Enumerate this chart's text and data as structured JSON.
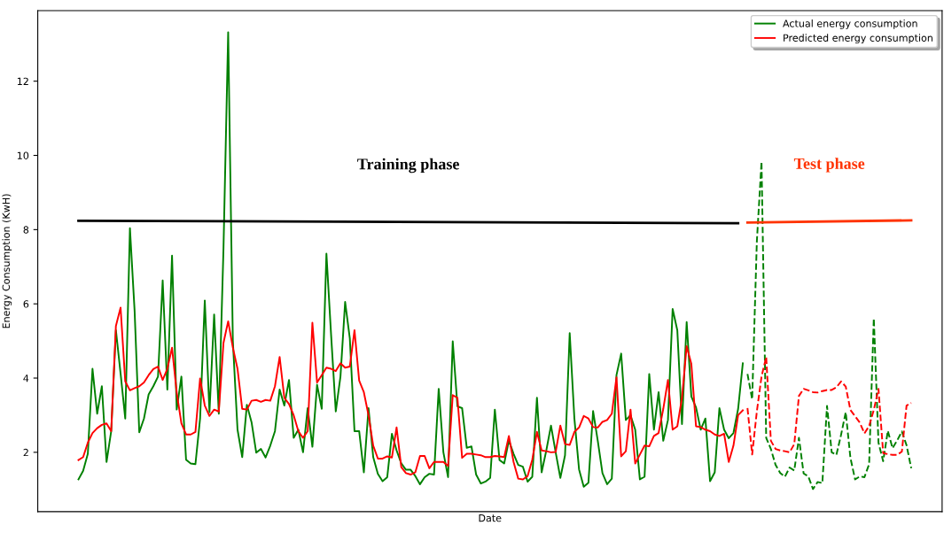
{
  "chart_data": {
    "type": "line",
    "xlabel": "Date",
    "ylabel": "Energy Consumption (KwH)",
    "categories": [
      null,
      null,
      null,
      null,
      null,
      null,
      null,
      null,
      null,
      null,
      null,
      null,
      null,
      null,
      null,
      null,
      null,
      null,
      null,
      null,
      null,
      null,
      null,
      null,
      null,
      null,
      null,
      null,
      null,
      null,
      null,
      null,
      null,
      null,
      null,
      null,
      null,
      null,
      null,
      null,
      null,
      null,
      null,
      null,
      null,
      null,
      null,
      null,
      null,
      null,
      null,
      null,
      null,
      null,
      null,
      null,
      null,
      null,
      null,
      null,
      null,
      null,
      null,
      null,
      null,
      null,
      null,
      null,
      null,
      null,
      null,
      null,
      null,
      null,
      null,
      null,
      null,
      null,
      null,
      null,
      null,
      null,
      null,
      null,
      null,
      null,
      null,
      null,
      null,
      null,
      null,
      null,
      null,
      null,
      null,
      null,
      null,
      null,
      null,
      null,
      null,
      null,
      null,
      null,
      null,
      null,
      null,
      null,
      null,
      null,
      null,
      null,
      null,
      null,
      null,
      null,
      null,
      null,
      null,
      null,
      null,
      null,
      null,
      null,
      null,
      null,
      null,
      null,
      null,
      null,
      null,
      null,
      null,
      null,
      null,
      null,
      null,
      null,
      null,
      null,
      null,
      null,
      null,
      null,
      null,
      null,
      null,
      null,
      null,
      null,
      null,
      null,
      null,
      null,
      null,
      null,
      null,
      null,
      null,
      null,
      null,
      null,
      null,
      null,
      null,
      null,
      null,
      null,
      null,
      null,
      null,
      null,
      null,
      null,
      null,
      null,
      null,
      null,
      null
    ],
    "ylim": [
      0.4,
      13.9
    ],
    "yticks": [
      2,
      4,
      6,
      8,
      10,
      12
    ],
    "tick_labels": "y",
    "legend": "upper right",
    "series": [
      {
        "name": "Actual energy consumption",
        "color": "#008000",
        "line_style": "solid",
        "values": [
          1.27,
          1.5,
          1.96,
          4.25,
          3.04,
          3.78,
          1.74,
          2.57,
          5.29,
          4.13,
          2.91,
          8.04,
          5.81,
          2.54,
          2.91,
          3.56,
          3.78,
          4.04,
          6.63,
          3.69,
          7.3,
          3.15,
          4.04,
          1.8,
          1.7,
          1.68,
          2.91,
          6.09,
          3.08,
          5.71,
          3.04,
          7.5,
          13.32,
          5.0,
          2.61,
          1.87,
          3.28,
          2.81,
          1.99,
          2.09,
          1.86,
          2.18,
          2.57,
          3.69,
          3.26,
          3.95,
          2.39,
          2.61,
          2.0,
          3.19,
          2.15,
          3.82,
          3.17,
          7.35,
          5.16,
          3.1,
          4.04,
          6.05,
          5.07,
          2.57,
          2.57,
          1.46,
          3.19,
          1.87,
          1.42,
          1.22,
          1.33,
          2.5,
          2.05,
          1.7,
          1.53,
          1.53,
          1.36,
          1.14,
          1.33,
          1.42,
          1.4,
          3.71,
          2.0,
          1.33,
          4.99,
          3.24,
          3.19,
          2.12,
          2.16,
          1.4,
          1.16,
          1.21,
          1.31,
          3.15,
          1.79,
          1.7,
          2.32,
          1.96,
          1.66,
          1.61,
          1.21,
          1.34,
          3.47,
          1.46,
          2.05,
          2.72,
          2.0,
          1.31,
          1.92,
          5.21,
          2.91,
          1.54,
          1.07,
          1.18,
          3.11,
          2.31,
          1.44,
          1.14,
          1.29,
          4.08,
          4.66,
          2.87,
          3.0,
          2.61,
          1.27,
          1.34,
          4.11,
          2.61,
          3.62,
          2.31,
          2.87,
          5.86,
          5.29,
          2.76,
          5.51,
          3.5,
          3.21,
          2.61,
          2.91,
          1.22,
          1.46,
          3.19,
          2.61,
          2.38,
          2.52,
          3.17,
          4.4,
          null,
          null,
          null,
          null,
          null,
          null,
          null,
          null,
          null,
          null,
          null,
          null,
          null,
          null,
          null,
          null,
          null,
          null,
          null,
          null,
          null,
          null,
          null,
          null,
          null,
          null,
          null,
          null,
          null,
          null,
          null,
          null,
          null,
          null,
          null,
          null
        ]
      },
      {
        "name": "Predicted energy consumption",
        "color": "#ff0000",
        "line_style": "solid",
        "values": [
          1.79,
          1.87,
          2.26,
          2.52,
          2.65,
          2.74,
          2.78,
          2.57,
          5.4,
          5.9,
          3.91,
          3.67,
          3.73,
          3.78,
          3.88,
          4.08,
          4.24,
          4.31,
          3.95,
          4.25,
          4.82,
          3.61,
          2.78,
          2.48,
          2.48,
          2.55,
          3.99,
          3.26,
          2.98,
          3.15,
          3.1,
          4.95,
          5.53,
          4.82,
          4.25,
          3.17,
          3.15,
          3.39,
          3.41,
          3.36,
          3.41,
          3.39,
          3.78,
          4.57,
          3.47,
          3.3,
          3.0,
          2.57,
          2.39,
          2.57,
          5.49,
          3.88,
          4.08,
          4.28,
          4.25,
          4.19,
          4.4,
          4.28,
          4.31,
          5.29,
          3.93,
          3.62,
          3.0,
          2.18,
          1.83,
          1.83,
          1.89,
          1.86,
          2.67,
          1.6,
          1.44,
          1.4,
          1.46,
          1.9,
          1.9,
          1.57,
          1.74,
          1.74,
          1.74,
          1.63,
          3.54,
          3.47,
          1.85,
          1.96,
          1.96,
          1.94,
          1.92,
          1.87,
          1.87,
          1.9,
          1.89,
          1.87,
          2.44,
          1.74,
          1.29,
          1.27,
          1.36,
          1.8,
          2.55,
          2.05,
          2.03,
          2.0,
          2.01,
          2.72,
          2.22,
          2.2,
          2.55,
          2.67,
          2.98,
          2.91,
          2.68,
          2.67,
          2.82,
          2.87,
          3.04,
          4.02,
          1.89,
          2.03,
          3.15,
          1.7,
          1.94,
          2.18,
          2.16,
          2.44,
          2.52,
          3.17,
          3.95,
          2.61,
          2.7,
          3.47,
          4.86,
          4.38,
          2.7,
          2.68,
          2.61,
          2.57,
          2.48,
          2.44,
          2.5,
          1.74,
          2.18,
          3.0,
          3.13,
          null,
          null,
          null,
          null,
          null,
          null,
          null,
          null,
          null,
          null,
          null,
          null,
          null,
          null,
          null,
          null,
          null,
          null,
          null,
          null,
          null,
          null,
          null,
          null,
          null,
          null,
          null,
          null,
          null,
          null,
          null,
          null,
          null,
          null,
          null,
          null
        ]
      },
      {
        "color": "#008000",
        "line_style": "dashed",
        "values": [
          null,
          null,
          null,
          null,
          null,
          null,
          null,
          null,
          null,
          null,
          null,
          null,
          null,
          null,
          null,
          null,
          null,
          null,
          null,
          null,
          null,
          null,
          null,
          null,
          null,
          null,
          null,
          null,
          null,
          null,
          null,
          null,
          null,
          null,
          null,
          null,
          null,
          null,
          null,
          null,
          null,
          null,
          null,
          null,
          null,
          null,
          null,
          null,
          null,
          null,
          null,
          null,
          null,
          null,
          null,
          null,
          null,
          null,
          null,
          null,
          null,
          null,
          null,
          null,
          null,
          null,
          null,
          null,
          null,
          null,
          null,
          null,
          null,
          null,
          null,
          null,
          null,
          null,
          null,
          null,
          null,
          null,
          null,
          null,
          null,
          null,
          null,
          null,
          null,
          null,
          null,
          null,
          null,
          null,
          null,
          null,
          null,
          null,
          null,
          null,
          null,
          null,
          null,
          null,
          null,
          null,
          null,
          null,
          null,
          null,
          null,
          null,
          null,
          null,
          null,
          null,
          null,
          null,
          null,
          null,
          null,
          null,
          null,
          null,
          null,
          null,
          null,
          null,
          null,
          null,
          null,
          null,
          null,
          null,
          null,
          null,
          null,
          null,
          null,
          null,
          null,
          null,
          null,
          4.11,
          3.43,
          7.68,
          9.83,
          2.39,
          2.09,
          1.66,
          1.44,
          1.34,
          1.59,
          1.51,
          2.39,
          1.43,
          1.35,
          1.01,
          1.2,
          1.17,
          3.25,
          2.0,
          1.93,
          2.47,
          3.08,
          1.85,
          1.27,
          1.35,
          1.33,
          1.68,
          5.61,
          2.26,
          1.76,
          2.58,
          2.11,
          2.32,
          2.56,
          2.19,
          1.57
        ]
      },
      {
        "color": "#ff0000",
        "line_style": "dashed",
        "values": [
          null,
          null,
          null,
          null,
          null,
          null,
          null,
          null,
          null,
          null,
          null,
          null,
          null,
          null,
          null,
          null,
          null,
          null,
          null,
          null,
          null,
          null,
          null,
          null,
          null,
          null,
          null,
          null,
          null,
          null,
          null,
          null,
          null,
          null,
          null,
          null,
          null,
          null,
          null,
          null,
          null,
          null,
          null,
          null,
          null,
          null,
          null,
          null,
          null,
          null,
          null,
          null,
          null,
          null,
          null,
          null,
          null,
          null,
          null,
          null,
          null,
          null,
          null,
          null,
          null,
          null,
          null,
          null,
          null,
          null,
          null,
          null,
          null,
          null,
          null,
          null,
          null,
          null,
          null,
          null,
          null,
          null,
          null,
          null,
          null,
          null,
          null,
          null,
          null,
          null,
          null,
          null,
          null,
          null,
          null,
          null,
          null,
          null,
          null,
          null,
          null,
          null,
          null,
          null,
          null,
          null,
          null,
          null,
          null,
          null,
          null,
          null,
          null,
          null,
          null,
          null,
          null,
          null,
          null,
          null,
          null,
          null,
          null,
          null,
          null,
          null,
          null,
          null,
          null,
          null,
          null,
          null,
          null,
          null,
          null,
          null,
          null,
          null,
          null,
          null,
          null,
          null,
          null,
          3.19,
          1.94,
          3.1,
          4.04,
          4.57,
          2.31,
          2.09,
          2.05,
          2.03,
          2.0,
          2.22,
          3.52,
          3.71,
          3.67,
          3.62,
          3.61,
          3.65,
          3.68,
          3.68,
          3.75,
          3.91,
          3.77,
          3.14,
          2.97,
          2.8,
          2.51,
          2.71,
          3.14,
          3.71,
          1.98,
          1.95,
          1.93,
          1.93,
          2.02,
          3.26,
          3.33
        ]
      },
      {
        "name": "Training phase",
        "color": "#000000",
        "line_style": "solid",
        "values": [
          8.24,
          null,
          null,
          null,
          null,
          null,
          null,
          null,
          null,
          null,
          null,
          null,
          null,
          null,
          null,
          null,
          null,
          null,
          null,
          null,
          null,
          null,
          null,
          null,
          null,
          null,
          null,
          null,
          null,
          null,
          null,
          null,
          null,
          null,
          null,
          null,
          null,
          null,
          null,
          null,
          null,
          null,
          null,
          null,
          null,
          null,
          null,
          null,
          null,
          null,
          null,
          null,
          null,
          null,
          null,
          null,
          null,
          null,
          null,
          null,
          null,
          null,
          null,
          null,
          null,
          null,
          null,
          null,
          null,
          null,
          null,
          null,
          null,
          null,
          null,
          null,
          null,
          null,
          null,
          null,
          null,
          null,
          null,
          null,
          null,
          null,
          null,
          null,
          null,
          null,
          null,
          null,
          null,
          null,
          null,
          null,
          null,
          null,
          null,
          null,
          null,
          null,
          null,
          null,
          null,
          null,
          null,
          null,
          null,
          null,
          null,
          null,
          null,
          null,
          null,
          null,
          null,
          null,
          null,
          null,
          null,
          null,
          null,
          null,
          null,
          null,
          null,
          null,
          null,
          null,
          null,
          null,
          null,
          null,
          null,
          null,
          null,
          null,
          null,
          null,
          null,
          8.17,
          null,
          null,
          null,
          null,
          null,
          null,
          null,
          null,
          null,
          null,
          null,
          null,
          null,
          null,
          null,
          null,
          null,
          null,
          null,
          null,
          null,
          null,
          null,
          null,
          null,
          null,
          null,
          null,
          null,
          null,
          null,
          null,
          null,
          null,
          null,
          null,
          null
        ]
      },
      {
        "name": "Test phase",
        "color": "#ff3300",
        "line_style": "solid",
        "values": [
          null,
          null,
          null,
          null,
          null,
          null,
          null,
          null,
          null,
          null,
          null,
          null,
          null,
          null,
          null,
          null,
          null,
          null,
          null,
          null,
          null,
          null,
          null,
          null,
          null,
          null,
          null,
          null,
          null,
          null,
          null,
          null,
          null,
          null,
          null,
          null,
          null,
          null,
          null,
          null,
          null,
          null,
          null,
          null,
          null,
          null,
          null,
          null,
          null,
          null,
          null,
          null,
          null,
          null,
          null,
          null,
          null,
          null,
          null,
          null,
          null,
          null,
          null,
          null,
          null,
          null,
          null,
          null,
          null,
          null,
          null,
          null,
          null,
          null,
          null,
          null,
          null,
          null,
          null,
          null,
          null,
          null,
          null,
          null,
          null,
          null,
          null,
          null,
          null,
          null,
          null,
          null,
          null,
          null,
          null,
          null,
          null,
          null,
          null,
          null,
          null,
          null,
          null,
          null,
          null,
          null,
          null,
          null,
          null,
          null,
          null,
          null,
          null,
          null,
          null,
          null,
          null,
          null,
          null,
          null,
          null,
          null,
          null,
          null,
          null,
          null,
          null,
          null,
          null,
          null,
          null,
          null,
          null,
          null,
          null,
          null,
          null,
          null,
          null,
          null,
          null,
          null,
          null,
          8.19,
          null,
          null,
          null,
          null,
          null,
          null,
          null,
          null,
          null,
          null,
          null,
          null,
          null,
          null,
          null,
          null,
          null,
          null,
          null,
          null,
          null,
          null,
          null,
          null,
          null,
          null,
          null,
          null,
          null,
          null,
          null,
          null,
          null,
          null,
          8.25
        ]
      }
    ]
  }
}
